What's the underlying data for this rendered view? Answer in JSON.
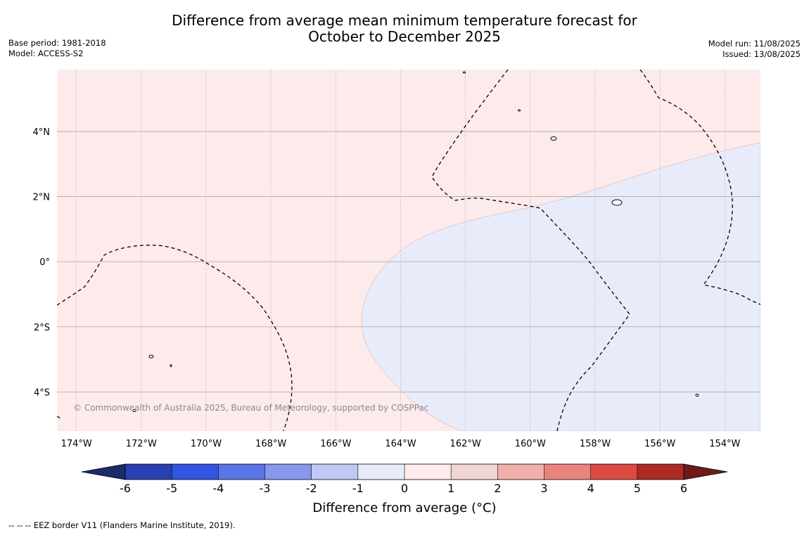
{
  "title": {
    "line1": "Difference from average mean minimum temperature forecast for",
    "line2": "October to December 2025"
  },
  "meta": {
    "base_period": "Base period: 1981-2018",
    "model": "Model: ACCESS-S2",
    "model_run": "Model run: 11/08/2025",
    "issued": "Issued: 13/08/2025"
  },
  "map": {
    "lon_range": [
      -174.6,
      -152.9
    ],
    "lat_range": [
      -5.2,
      5.9
    ],
    "lon_ticks": [
      "174°W",
      "172°W",
      "170°W",
      "168°W",
      "166°W",
      "164°W",
      "162°W",
      "160°W",
      "158°W",
      "156°W",
      "154°W"
    ],
    "lat_ticks": [
      "4°N",
      "2°N",
      "0°",
      "2°S",
      "4°S"
    ],
    "copyright": "© Commonwealth of Australia 2025, Bureau of Meteorology, supported by COSPPac",
    "colors": {
      "warm_region": "#fcebea",
      "cool_region": "#e8ebfa",
      "grid": "#9a9a9a",
      "eez_line": "#000000"
    }
  },
  "colorbar": {
    "tick_labels": [
      "-6",
      "-5",
      "-4",
      "-3",
      "-2",
      "-1",
      "0",
      "1",
      "2",
      "3",
      "4",
      "5",
      "6"
    ],
    "label": "Difference from average (°C)",
    "low_extend_color": "#1b2a6b",
    "high_extend_color": "#6e1a17",
    "colors": [
      "#2a40b0",
      "#3355e0",
      "#5a75e6",
      "#8797ec",
      "#c2c8f5",
      "#e8ebfa",
      "#fcebea",
      "#efd6d5",
      "#f0b0ac",
      "#e8847c",
      "#dc4b42",
      "#ad2a24"
    ]
  },
  "footnote": "--  --  -- EEZ border V11 (Flanders Marine Institute, 2019)."
}
